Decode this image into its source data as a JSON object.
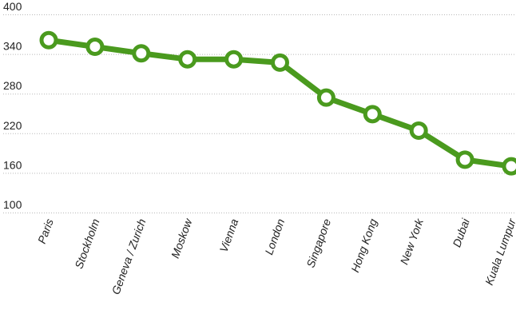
{
  "chart_data": {
    "type": "line",
    "title": "",
    "xlabel": "",
    "ylabel": "",
    "categories": [
      "Paris",
      "Stockholm",
      "Geneva / Zurich",
      "Moskow",
      "Vienna",
      "London",
      "Singapore",
      "Hong Kong",
      "New York",
      "Dubai",
      "Kuala Lumpur"
    ],
    "series": [
      {
        "values": [
          361,
          351,
          341,
          332,
          332,
          327,
          274,
          249,
          224,
          180,
          170
        ],
        "color": "#4a9a1e"
      }
    ],
    "ylim": [
      100,
      400
    ],
    "yticks": [
      "400",
      "340",
      "280",
      "220",
      "160",
      "100"
    ],
    "grid": true,
    "grid_style": "dotted",
    "legend": "none",
    "marker": "hollow-circle"
  }
}
